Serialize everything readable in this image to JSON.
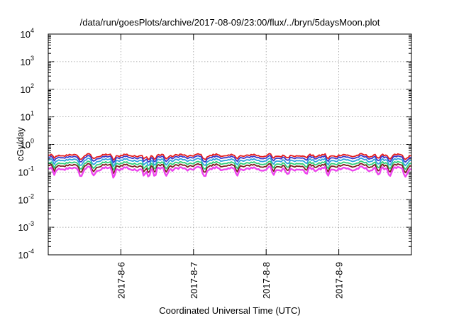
{
  "chart_data": {
    "type": "line",
    "title": "/data/run/goesPlots/archive/2017-08-09/23:00/flux/../bryn/5daysMoon.plot",
    "xlabel": "Coordinated Universal Time (UTC)",
    "ylabel": "cGy/day",
    "yscale": "log",
    "ylim": [
      0.0001,
      10000
    ],
    "xlim": [
      "2017-08-05",
      "2017-08-10"
    ],
    "grid": true,
    "y_ticks": [
      {
        "base": "10",
        "exp": "-4",
        "value": 0.0001
      },
      {
        "base": "10",
        "exp": "-3",
        "value": 0.001
      },
      {
        "base": "10",
        "exp": "-2",
        "value": 0.01
      },
      {
        "base": "10",
        "exp": "-1",
        "value": 0.1
      },
      {
        "base": "10",
        "exp": "0",
        "value": 1
      },
      {
        "base": "10",
        "exp": "1",
        "value": 10
      },
      {
        "base": "10",
        "exp": "2",
        "value": 100
      },
      {
        "base": "10",
        "exp": "3",
        "value": 1000
      },
      {
        "base": "10",
        "exp": "4",
        "value": 10000
      }
    ],
    "x_ticks": [
      {
        "label": "2017-8-6",
        "date": "2017-08-06"
      },
      {
        "label": "2017-8-7",
        "date": "2017-08-07"
      },
      {
        "label": "2017-8-8",
        "date": "2017-08-08"
      },
      {
        "label": "2017-8-9",
        "date": "2017-08-09"
      }
    ],
    "series": [
      {
        "color": "#e41a1c",
        "level": 0.4,
        "spread": 0.16
      },
      {
        "color": "#3a3acc",
        "level": 0.34,
        "spread": 0.16
      },
      {
        "color": "#2fa0e0",
        "level": 0.27,
        "spread": 0.17
      },
      {
        "color": "#2ecf7a",
        "level": 0.21,
        "spread": 0.17
      },
      {
        "color": "#7a1e1e",
        "level": 0.17,
        "spread": 0.18
      },
      {
        "color": "#ee44ee",
        "level": 0.13,
        "spread": 0.22
      }
    ],
    "dips_days": [
      0.08,
      0.45,
      0.62,
      0.9,
      1.32,
      1.38,
      1.47,
      1.62,
      2.15,
      2.6,
      3.1,
      3.3,
      3.55,
      3.85,
      4.55,
      4.7,
      4.92
    ]
  }
}
